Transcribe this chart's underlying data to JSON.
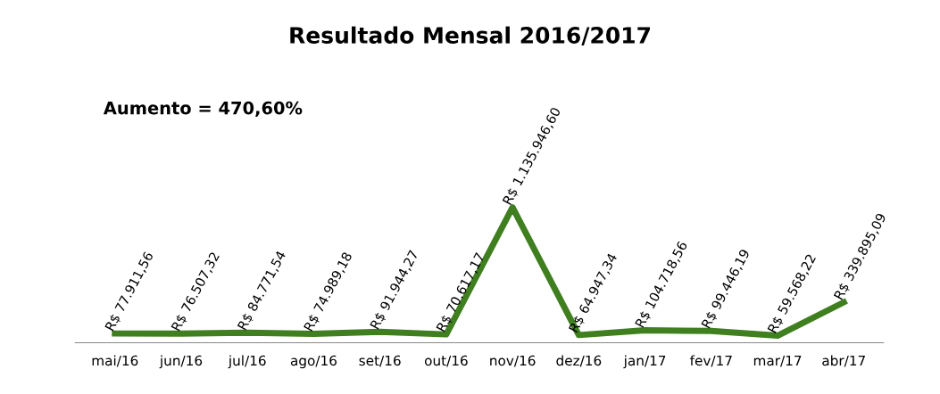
{
  "chart_data": {
    "type": "line",
    "title": "Resultado Mensal 2016/2017",
    "annotations": [
      "Aumento = 470,60%"
    ],
    "categories": [
      "mai/16",
      "jun/16",
      "jul/16",
      "ago/16",
      "set/16",
      "out/16",
      "nov/16",
      "dez/16",
      "jan/17",
      "fev/17",
      "mar/17",
      "abr/17"
    ],
    "series": [
      {
        "color": "#3f7f1f",
        "values": [
          77911.56,
          76507.32,
          84771.54,
          74989.18,
          91944.27,
          70617.17,
          1135946.6,
          64947.34,
          104718.56,
          99446.19,
          59568.22,
          339895.09
        ],
        "value_labels": [
          "R$ 77.911,56",
          "R$ 76.507,32",
          "R$ 84.771,54",
          "R$ 74.989,18",
          "R$ 91.944,27",
          "R$ 70.617,17",
          "R$ 1.135.946,60",
          "R$ 64.947,34",
          "R$ 104.718,56",
          "R$ 99.446,19",
          "R$ 59.568,22",
          "R$ 339.895,09"
        ]
      }
    ],
    "grid": false,
    "legend": false,
    "marker": "none",
    "line_style": "solid"
  }
}
